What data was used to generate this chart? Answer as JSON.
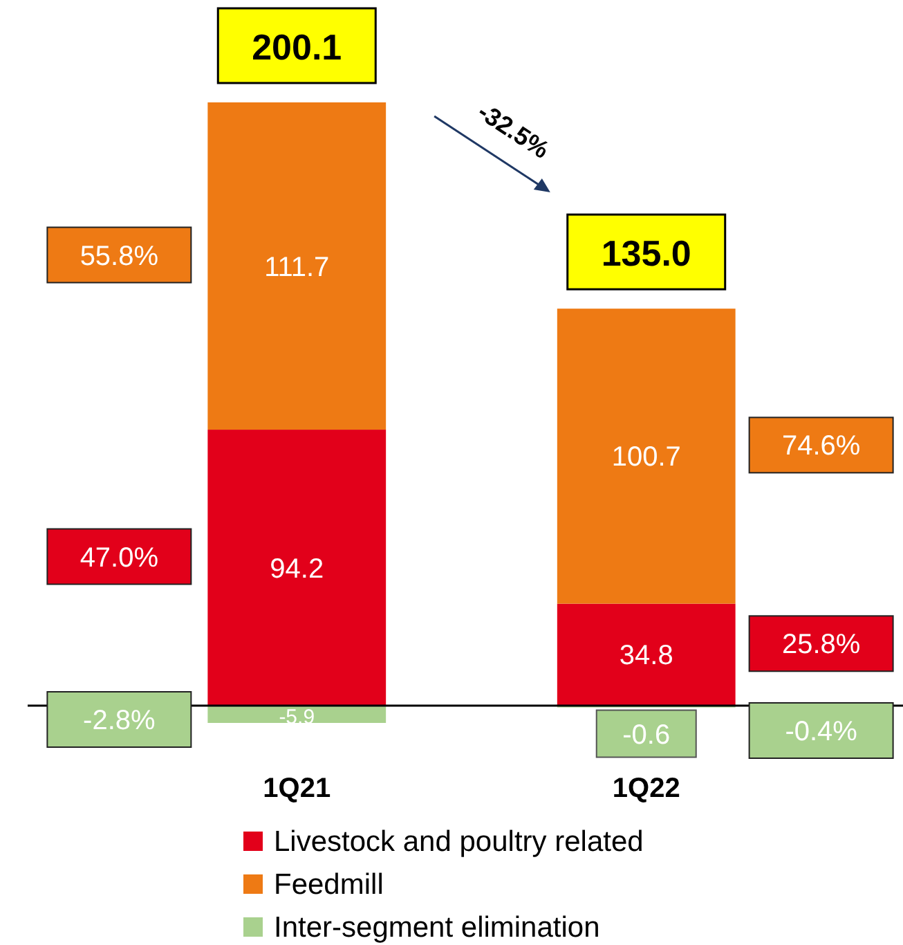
{
  "chart_data": {
    "type": "bar",
    "stacked": true,
    "categories": [
      "1Q21",
      "1Q22"
    ],
    "series": [
      {
        "name": "Livestock and poultry related",
        "color": "#e2001a",
        "values": [
          94.2,
          34.8
        ]
      },
      {
        "name": "Feedmill",
        "color": "#ee7a14",
        "values": [
          111.7,
          100.7
        ]
      },
      {
        "name": "Inter-segment elimination",
        "color": "#a9d18e",
        "values": [
          -5.9,
          -0.6
        ]
      }
    ],
    "tick_labels": "x",
    "data_labels": true,
    "totals": [
      "200.1",
      "135.0"
    ],
    "legend": "bottom",
    "annotations": [
      "55.8%",
      "47.0%",
      "-2.8%",
      "74.6%",
      "25.8%",
      "-0.4%",
      "-32.5%"
    ]
  }
}
